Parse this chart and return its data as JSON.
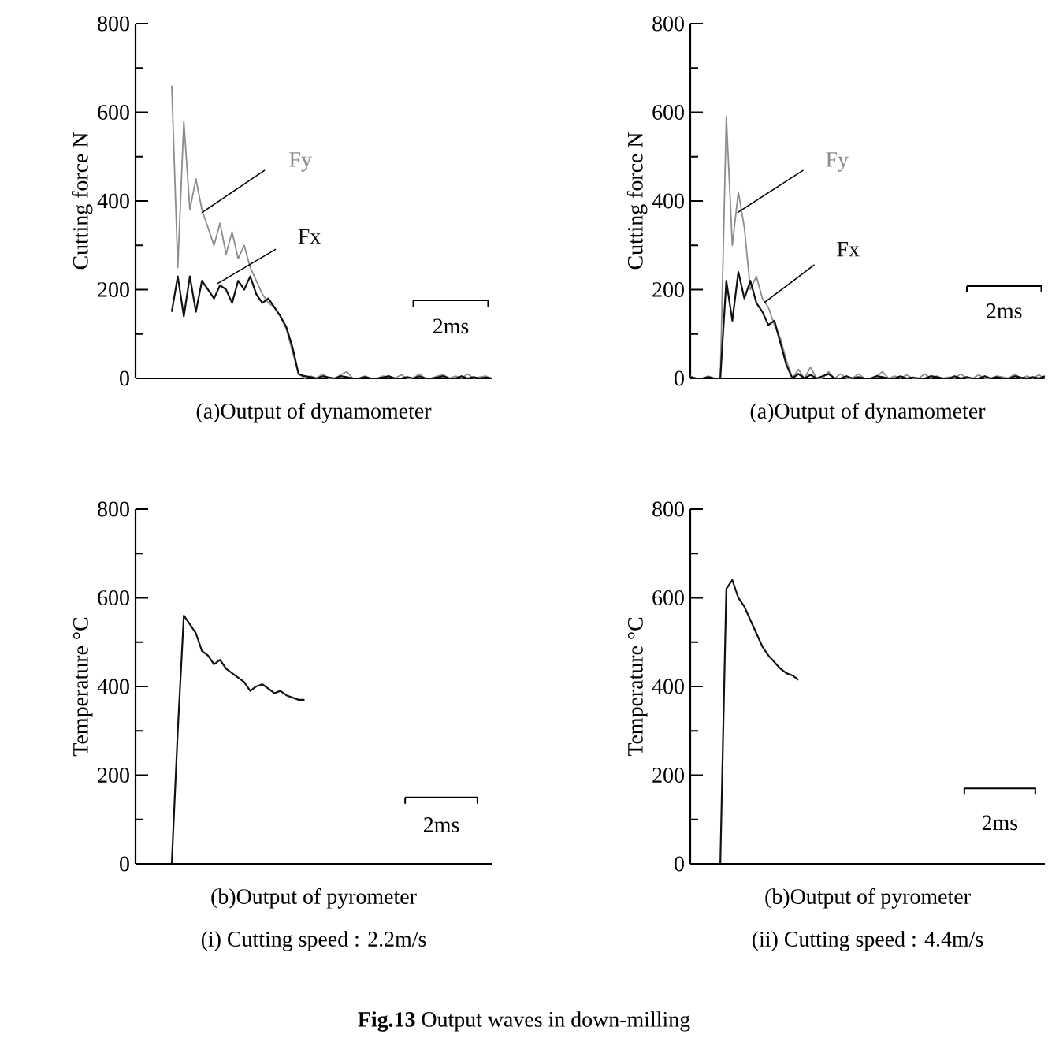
{
  "chart_data": [
    {
      "type": "line",
      "ylabel": "Cutting force  N",
      "xlabel": "(a)Output of dynamometer",
      "tick_labels": "y",
      "ylim": [
        0,
        800
      ],
      "yticks": [
        0,
        {
          "value": 100,
          "label": null
        },
        200,
        {
          "value": 300,
          "label": null
        },
        400,
        {
          "value": 500,
          "label": null
        },
        600,
        {
          "value": 700,
          "label": null
        },
        800
      ],
      "categories": [
        null,
        null,
        null,
        null,
        null,
        null,
        null,
        null,
        null,
        null,
        null,
        null,
        null,
        null,
        null,
        null,
        null,
        null,
        null,
        null,
        null,
        null,
        null,
        null,
        null,
        null,
        null,
        null,
        null,
        null,
        null,
        null,
        null,
        null,
        null,
        null,
        null,
        null,
        null,
        null,
        null,
        null,
        null,
        null,
        null,
        null,
        null,
        null,
        null,
        null,
        null,
        null,
        null,
        null,
        null,
        null,
        null,
        null,
        null,
        null
      ],
      "series": [
        {
          "name": "Fy",
          "color": "#8c8c8c",
          "values": [
            null,
            null,
            null,
            null,
            null,
            null,
            660,
            250,
            580,
            380,
            450,
            380,
            340,
            300,
            350,
            280,
            330,
            270,
            300,
            250,
            220,
            190,
            170,
            160,
            140,
            110,
            60,
            10,
            0,
            5,
            0,
            10,
            0,
            0,
            8,
            15,
            0,
            0,
            5,
            0,
            0,
            5,
            3,
            0,
            8,
            0,
            0,
            10,
            0,
            0,
            5,
            8,
            0,
            5,
            0,
            10,
            0,
            3,
            5,
            0
          ]
        },
        {
          "name": "Fx",
          "color": "#111111",
          "values": [
            null,
            null,
            null,
            null,
            null,
            null,
            150,
            230,
            140,
            230,
            150,
            220,
            200,
            180,
            210,
            200,
            170,
            220,
            200,
            230,
            190,
            170,
            180,
            160,
            140,
            115,
            70,
            10,
            5,
            3,
            0,
            5,
            2,
            0,
            5,
            3,
            0,
            0,
            3,
            0,
            0,
            2,
            5,
            0,
            0,
            3,
            0,
            5,
            0,
            0,
            2,
            5,
            0,
            0,
            5,
            0,
            3,
            0,
            2,
            0
          ]
        }
      ],
      "annotations": [
        "2ms"
      ]
    },
    {
      "type": "line",
      "ylabel": "Cutting force  N",
      "xlabel": "(a)Output of dynamometer",
      "tick_labels": "y",
      "ylim": [
        0,
        800
      ],
      "yticks": [
        0,
        {
          "value": 100,
          "label": null
        },
        200,
        {
          "value": 300,
          "label": null
        },
        400,
        {
          "value": 500,
          "label": null
        },
        600,
        {
          "value": 700,
          "label": null
        },
        800
      ],
      "categories": [
        null,
        null,
        null,
        null,
        null,
        null,
        null,
        null,
        null,
        null,
        null,
        null,
        null,
        null,
        null,
        null,
        null,
        null,
        null,
        null,
        null,
        null,
        null,
        null,
        null,
        null,
        null,
        null,
        null,
        null,
        null,
        null,
        null,
        null,
        null,
        null,
        null,
        null,
        null,
        null,
        null,
        null,
        null,
        null,
        null,
        null,
        null,
        null,
        null,
        null,
        null,
        null,
        null,
        null,
        null,
        null,
        null,
        null,
        null,
        null
      ],
      "series": [
        {
          "name": "Fy",
          "color": "#8c8c8c",
          "values": [
            5,
            0,
            0,
            5,
            0,
            0,
            590,
            300,
            420,
            340,
            200,
            230,
            180,
            160,
            120,
            90,
            40,
            0,
            20,
            0,
            25,
            0,
            0,
            15,
            0,
            10,
            0,
            0,
            10,
            0,
            0,
            5,
            15,
            0,
            5,
            0,
            8,
            0,
            0,
            10,
            0,
            5,
            0,
            3,
            0,
            10,
            0,
            0,
            8,
            0,
            0,
            5,
            3,
            0,
            10,
            0,
            5,
            0,
            8,
            0
          ]
        },
        {
          "name": "Fx",
          "color": "#111111",
          "values": [
            3,
            0,
            0,
            3,
            0,
            0,
            220,
            130,
            240,
            180,
            220,
            170,
            150,
            120,
            130,
            80,
            30,
            0,
            10,
            0,
            8,
            0,
            5,
            10,
            0,
            0,
            5,
            0,
            3,
            0,
            0,
            5,
            3,
            0,
            0,
            5,
            0,
            2,
            0,
            0,
            5,
            3,
            0,
            0,
            5,
            0,
            3,
            0,
            0,
            5,
            0,
            3,
            0,
            0,
            5,
            2,
            0,
            3,
            0,
            5
          ]
        }
      ],
      "annotations": [
        "2ms"
      ]
    },
    {
      "type": "line",
      "ylabel": "Temperature  °C",
      "xlabel": "(b)Output of pyrometer",
      "tick_labels": "y",
      "ylim": [
        0,
        800
      ],
      "yticks": [
        0,
        {
          "value": 100,
          "label": null
        },
        200,
        {
          "value": 300,
          "label": null
        },
        400,
        {
          "value": 500,
          "label": null
        },
        600,
        {
          "value": 700,
          "label": null
        },
        800
      ],
      "categories": [
        null,
        null,
        null,
        null,
        null,
        null,
        null,
        null,
        null,
        null,
        null,
        null,
        null,
        null,
        null,
        null,
        null,
        null,
        null,
        null,
        null,
        null,
        null,
        null,
        null,
        null,
        null,
        null,
        null,
        null,
        null,
        null,
        null,
        null,
        null,
        null,
        null,
        null,
        null,
        null,
        null,
        null,
        null,
        null,
        null,
        null,
        null,
        null,
        null,
        null,
        null,
        null,
        null,
        null,
        null,
        null,
        null,
        null,
        null,
        null
      ],
      "color": "#111111",
      "values": [
        null,
        null,
        null,
        null,
        null,
        null,
        0,
        300,
        560,
        540,
        520,
        480,
        470,
        450,
        460,
        440,
        430,
        420,
        410,
        390,
        400,
        405,
        395,
        385,
        390,
        380,
        375,
        370,
        370,
        null,
        null,
        null,
        null,
        null,
        null,
        null,
        null,
        null,
        null,
        null,
        null,
        null,
        null,
        null,
        null,
        null,
        null,
        null,
        null,
        null,
        null,
        null,
        null,
        null,
        null,
        null,
        null,
        null,
        null,
        null
      ],
      "annotations": [
        "2ms",
        "(i) Cutting speed : 2.2m/s",
        "**Fig.13** Output waves in down-milling"
      ]
    },
    {
      "type": "line",
      "ylabel": "Temperature  °C",
      "xlabel": "(b)Output of pyrometer",
      "tick_labels": "y",
      "ylim": [
        0,
        800
      ],
      "yticks": [
        0,
        {
          "value": 100,
          "label": null
        },
        200,
        {
          "value": 300,
          "label": null
        },
        400,
        {
          "value": 500,
          "label": null
        },
        600,
        {
          "value": 700,
          "label": null
        },
        800
      ],
      "categories": [
        null,
        null,
        null,
        null,
        null,
        null,
        null,
        null,
        null,
        null,
        null,
        null,
        null,
        null,
        null,
        null,
        null,
        null,
        null,
        null,
        null,
        null,
        null,
        null,
        null,
        null,
        null,
        null,
        null,
        null,
        null,
        null,
        null,
        null,
        null,
        null,
        null,
        null,
        null,
        null,
        null,
        null,
        null,
        null,
        null,
        null,
        null,
        null,
        null,
        null,
        null,
        null,
        null,
        null,
        null,
        null,
        null,
        null,
        null,
        null
      ],
      "color": "#111111",
      "values": [
        null,
        null,
        null,
        null,
        null,
        0,
        620,
        640,
        600,
        580,
        550,
        520,
        490,
        470,
        455,
        440,
        430,
        425,
        415,
        null,
        null,
        null,
        null,
        null,
        null,
        null,
        null,
        null,
        null,
        null,
        null,
        null,
        null,
        null,
        null,
        null,
        null,
        null,
        null,
        null,
        null,
        null,
        null,
        null,
        null,
        null,
        null,
        null,
        null,
        null,
        null,
        null,
        null,
        null,
        null,
        null,
        null,
        null,
        null,
        null
      ],
      "annotations": [
        "2ms",
        "(ii) Cutting speed : 4.4m/s"
      ]
    }
  ]
}
